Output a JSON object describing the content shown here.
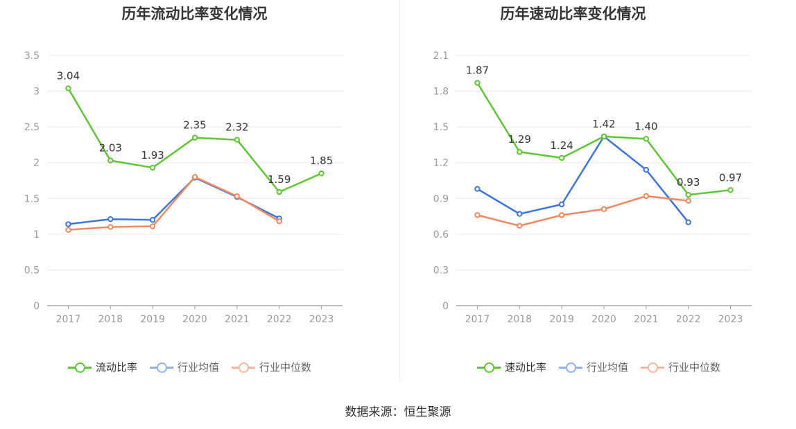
{
  "source_text": "数据来源：恒生聚源",
  "chart_data": [
    {
      "type": "line",
      "title": "历年流动比率变化情况",
      "x": [
        "2017",
        "2018",
        "2019",
        "2020",
        "2021",
        "2022",
        "2023"
      ],
      "ylim": [
        0,
        3.5
      ],
      "yticks": [
        "0",
        "0.5",
        "1",
        "1.5",
        "2",
        "2.5",
        "3",
        "3.5"
      ],
      "ytick_values": [
        0,
        0.5,
        1,
        1.5,
        2,
        2.5,
        3,
        3.5
      ],
      "grid": true,
      "legend_position": "bottom",
      "series": [
        {
          "name": "流动比率",
          "color": "#5cc72f",
          "values": [
            3.04,
            2.03,
            1.93,
            2.35,
            2.32,
            1.59,
            1.85
          ],
          "labels": [
            "3.04",
            "2.03",
            "1.93",
            "2.35",
            "2.32",
            "1.59",
            "1.85"
          ],
          "primary": true
        },
        {
          "name": "行业均值",
          "color": "#3a74e0",
          "values": [
            1.14,
            1.21,
            1.2,
            1.79,
            1.52,
            1.22,
            null
          ],
          "primary": false
        },
        {
          "name": "行业中位数",
          "color": "#f0885e",
          "values": [
            1.06,
            1.1,
            1.11,
            1.8,
            1.53,
            1.18,
            null
          ],
          "primary": false
        }
      ]
    },
    {
      "type": "line",
      "title": "历年速动比率变化情况",
      "x": [
        "2017",
        "2018",
        "2019",
        "2020",
        "2021",
        "2022",
        "2023"
      ],
      "ylim": [
        0,
        2.1
      ],
      "yticks": [
        "0",
        "0.3",
        "0.6",
        "0.9",
        "1.2",
        "1.5",
        "1.8",
        "2.1"
      ],
      "ytick_values": [
        0,
        0.3,
        0.6,
        0.9,
        1.2,
        1.5,
        1.8,
        2.1
      ],
      "grid": true,
      "legend_position": "bottom",
      "series": [
        {
          "name": "速动比率",
          "color": "#5cc72f",
          "values": [
            1.87,
            1.29,
            1.24,
            1.42,
            1.4,
            0.93,
            0.97
          ],
          "labels": [
            "1.87",
            "1.29",
            "1.24",
            "1.42",
            "1.40",
            "0.93",
            "0.97"
          ],
          "primary": true
        },
        {
          "name": "行业均值",
          "color": "#3a74e0",
          "values": [
            0.98,
            0.77,
            0.85,
            1.42,
            1.14,
            0.7,
            null
          ],
          "primary": false
        },
        {
          "name": "行业中位数",
          "color": "#f0885e",
          "values": [
            0.76,
            0.67,
            0.76,
            0.81,
            0.92,
            0.88,
            null
          ],
          "primary": false
        }
      ]
    }
  ]
}
